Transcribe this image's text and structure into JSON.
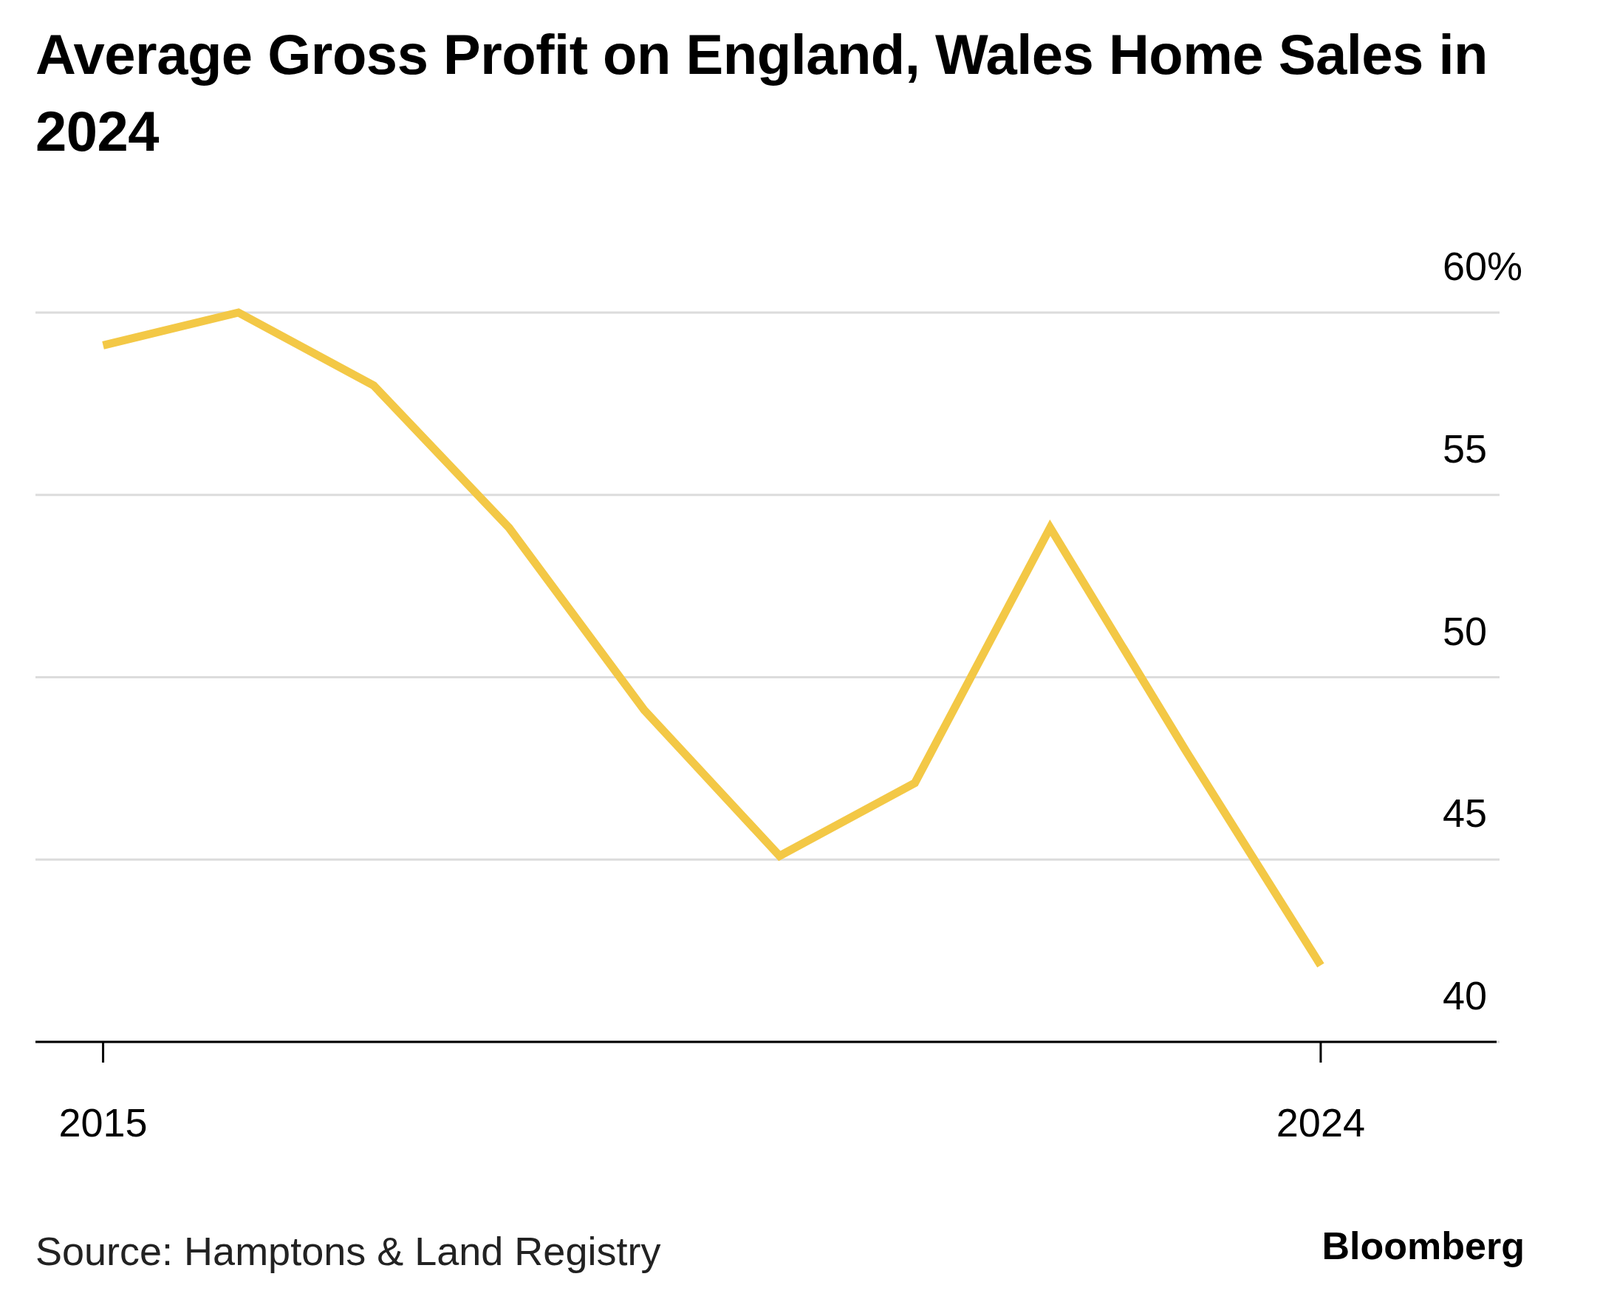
{
  "chart_data": {
    "type": "line",
    "title": "Average Gross Profit on England, Wales Home Sales in 2024",
    "source": "Source: Hamptons & Land Registry",
    "credit": "Bloomberg",
    "x": [
      2015,
      2016,
      2017,
      2018,
      2019,
      2020,
      2021,
      2022,
      2023,
      2024
    ],
    "values": [
      59.1,
      60.0,
      58.0,
      54.1,
      49.1,
      45.1,
      47.1,
      54.1,
      48.0,
      42.1
    ],
    "color": "#f3c846",
    "xlim": [
      2014.5,
      2025.3
    ],
    "xticks": [
      2015,
      2024
    ],
    "ylim": [
      40,
      60
    ],
    "yticks": [
      40,
      45,
      50,
      55,
      {
        "value": 60,
        "label": "60%"
      }
    ],
    "grid": true
  }
}
